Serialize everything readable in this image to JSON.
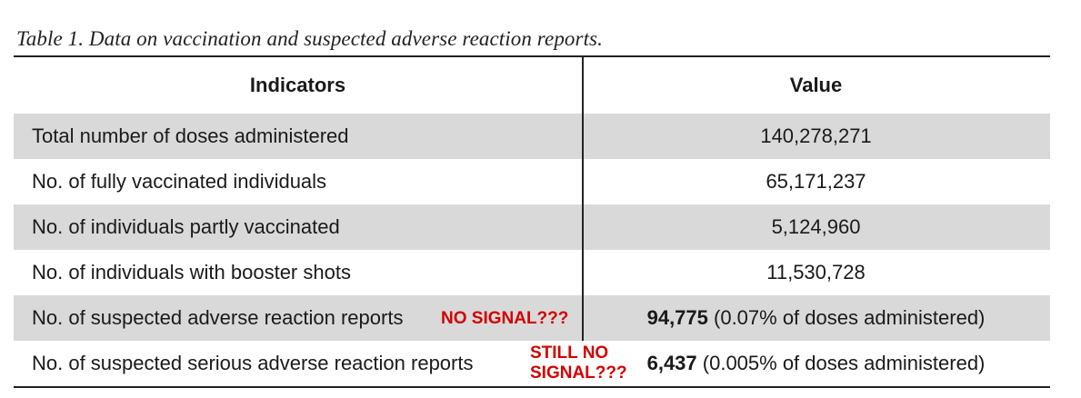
{
  "caption": "Table 1. Data on vaccination and suspected adverse reaction reports.",
  "headers": {
    "indicators": "Indicators",
    "value": "Value"
  },
  "rows": [
    {
      "indicator": "Total number of doses administered",
      "value_bold": "",
      "value_rest": "140,278,271"
    },
    {
      "indicator": "No. of fully vaccinated individuals",
      "value_bold": "",
      "value_rest": "65,171,237"
    },
    {
      "indicator": "No. of individuals partly vaccinated",
      "value_bold": "",
      "value_rest": "5,124,960"
    },
    {
      "indicator": "No. of individuals with booster shots",
      "value_bold": "",
      "value_rest": "11,530,728"
    },
    {
      "indicator": "No. of suspected adverse reaction reports",
      "value_bold": "94,775",
      "value_rest": " (0.07% of doses administered)"
    },
    {
      "indicator": "No. of suspected serious adverse reaction reports",
      "value_bold": "6,437",
      "value_rest": " (0.005% of doses administered)"
    }
  ],
  "annotations": {
    "first": "NO SIGNAL???",
    "second_line1": "STILL NO",
    "second_line2": "SIGNAL???"
  },
  "colors": {
    "shaded_row": "#d9d9d9",
    "annotation": "#d40000"
  }
}
